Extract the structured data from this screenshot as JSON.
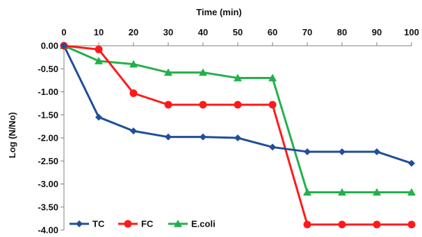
{
  "chart_data": {
    "type": "line",
    "title": "",
    "xlabel": "Time (min)",
    "ylabel": "Log (N/No)",
    "x": [
      0,
      10,
      20,
      30,
      40,
      50,
      60,
      70,
      80,
      90,
      100
    ],
    "x_tick_labels": [
      "0",
      "10",
      "20",
      "30",
      "40",
      "50",
      "60",
      "70",
      "80",
      "90",
      "100"
    ],
    "y_tick_labels": [
      "0.00",
      "-0.50",
      "-1.00",
      "-1.50",
      "-2.00",
      "-2.50",
      "-3.00",
      "-3.50",
      "-4.00"
    ],
    "y_ticks": [
      0,
      -0.5,
      -1.0,
      -1.5,
      -2.0,
      -2.5,
      -3.0,
      -3.5,
      -4.0
    ],
    "xlim": [
      0,
      100
    ],
    "ylim": [
      -4.0,
      0
    ],
    "x_axis_position": "top",
    "grid": false,
    "legend_position": "bottom-left",
    "series": [
      {
        "name": "TC",
        "color": "#1F4E9A",
        "marker": "diamond",
        "values": [
          0,
          -1.55,
          -1.85,
          -1.98,
          -1.98,
          -2.0,
          -2.2,
          -2.3,
          -2.3,
          -2.3,
          -2.55
        ]
      },
      {
        "name": "FC",
        "color": "#FF1A1A",
        "marker": "circle",
        "values": [
          0,
          -0.08,
          -1.03,
          -1.28,
          -1.28,
          -1.28,
          -1.28,
          -3.88,
          -3.88,
          -3.88,
          -3.88
        ]
      },
      {
        "name": "E.coli",
        "color": "#22B04B",
        "marker": "triangle",
        "values": [
          0,
          -0.33,
          -0.4,
          -0.58,
          -0.58,
          -0.7,
          -0.7,
          -3.18,
          -3.18,
          -3.18,
          -3.18
        ]
      }
    ]
  }
}
